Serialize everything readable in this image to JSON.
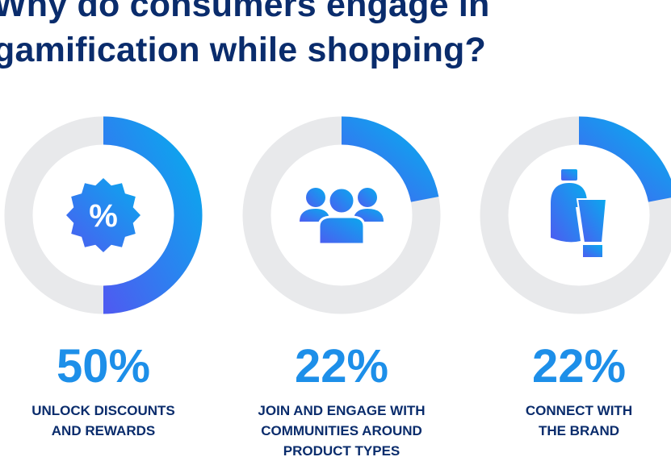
{
  "title": [
    "Why do consumers engage in",
    "gamification while shopping?"
  ],
  "colors": {
    "title": "#0a2c6c",
    "track": "#e8e9eb",
    "gradient_start": "#08aaee",
    "gradient_end": "#4d5cf1"
  },
  "chart_data": {
    "type": "donut",
    "title": "Why do consumers engage in gamification while shopping?",
    "unit": "%",
    "range": [
      0,
      100
    ],
    "items": [
      {
        "value": 50,
        "value_label": "50%",
        "label": [
          "UNLOCK DISCOUNTS",
          "AND REWARDS"
        ],
        "icon": "discount-badge-icon"
      },
      {
        "value": 22,
        "value_label": "22%",
        "label": [
          "JOIN AND ENGAGE WITH",
          "COMMUNITIES AROUND",
          "PRODUCT TYPES"
        ],
        "icon": "people-group-icon"
      },
      {
        "value": 22,
        "value_label": "22%",
        "label": [
          "CONNECT WITH",
          "THE BRAND"
        ],
        "icon": "beauty-products-icon"
      }
    ]
  }
}
